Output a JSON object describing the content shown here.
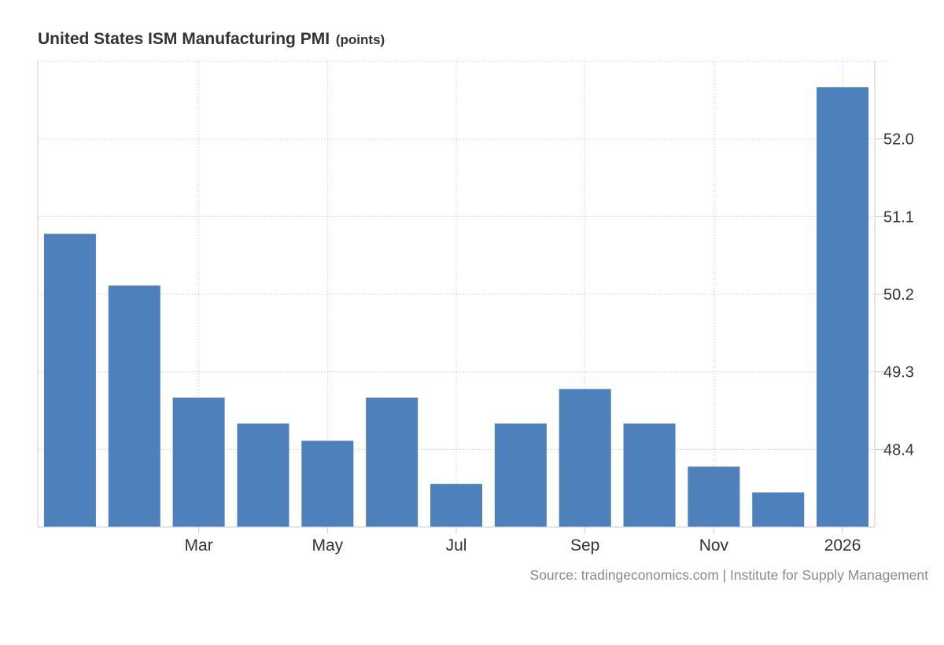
{
  "title": "United States ISM Manufacturing PMI",
  "unit": "(points)",
  "source": "Source: tradingeconomics.com | Institute for Supply Management",
  "colors": {
    "bar": "#4e80bb",
    "grid": "#d9d9d9",
    "text": "#333333",
    "source": "#8a8a8a"
  },
  "chart_data": {
    "type": "bar",
    "title": "United States ISM Manufacturing PMI",
    "ylabel": "points",
    "xlabel": "",
    "categories": [
      "2025-01",
      "2025-02",
      "2025-03",
      "2025-04",
      "2025-05",
      "2025-06",
      "2025-07",
      "2025-08",
      "2025-09",
      "2025-10",
      "2025-11",
      "2025-12",
      "2026-01"
    ],
    "values": [
      50.9,
      50.3,
      49.0,
      48.7,
      48.5,
      49.0,
      48.0,
      48.7,
      49.1,
      48.7,
      48.2,
      47.9,
      52.6
    ],
    "x_tick_labels": [
      {
        "category": "2025-03",
        "label": "Mar"
      },
      {
        "category": "2025-05",
        "label": "May"
      },
      {
        "category": "2025-07",
        "label": "Jul"
      },
      {
        "category": "2025-09",
        "label": "Sep"
      },
      {
        "category": "2025-11",
        "label": "Nov"
      },
      {
        "category": "2026-01",
        "label": "2026"
      }
    ],
    "y_ticks": [
      {
        "value": 48.4,
        "label": "48.4"
      },
      {
        "value": 49.3,
        "label": "49.3"
      },
      {
        "value": 50.2,
        "label": "50.2"
      },
      {
        "value": 51.1,
        "label": "51.1"
      },
      {
        "value": 52.0,
        "label": "52.0"
      }
    ],
    "ylim": [
      47.5,
      52.9
    ],
    "y_axis_side": "right",
    "grid": true,
    "legend": "none"
  }
}
